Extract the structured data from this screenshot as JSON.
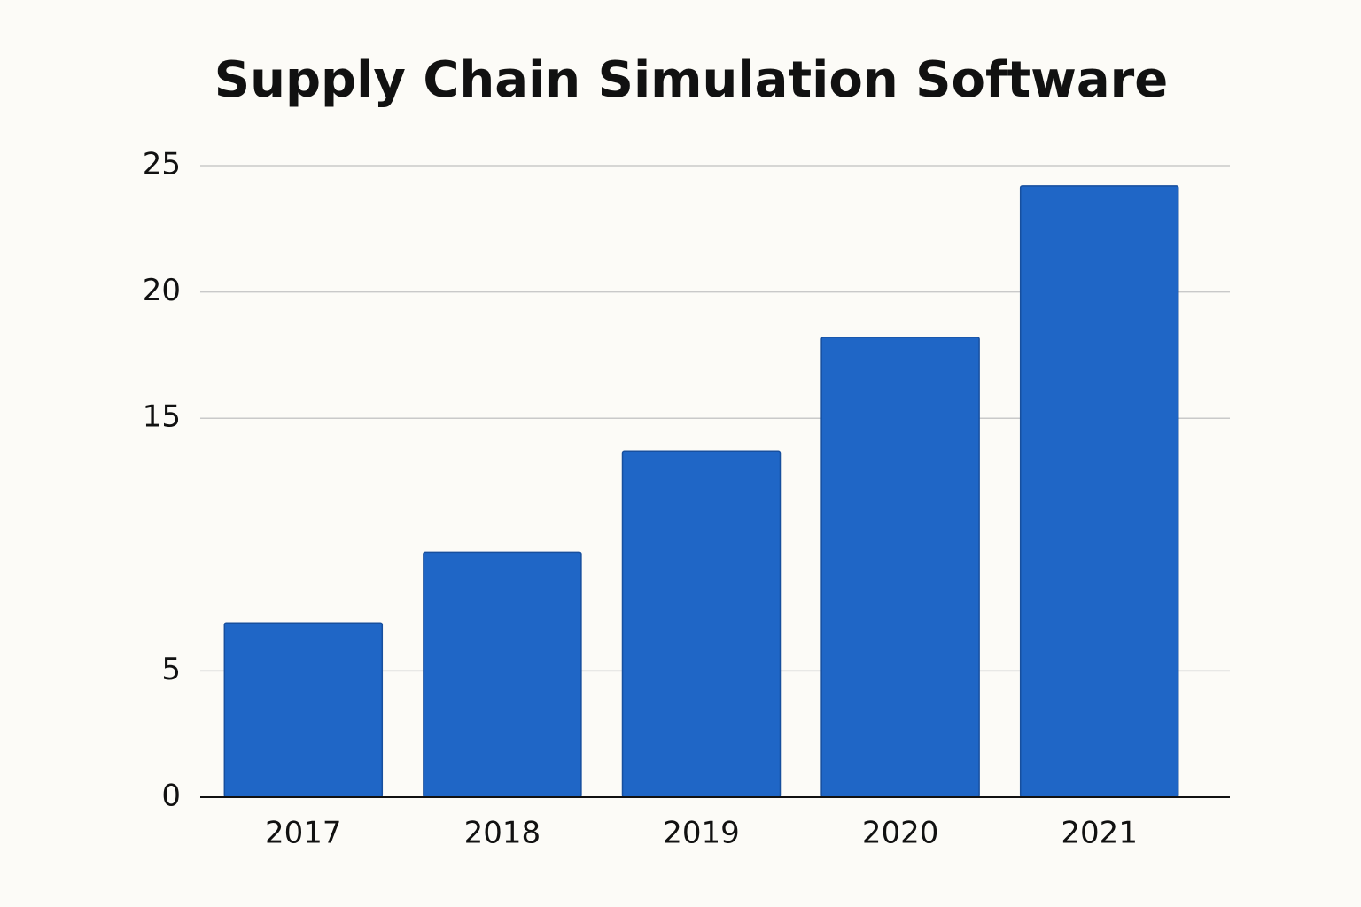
{
  "chart_data": {
    "type": "bar",
    "title": "Supply Chain Simulation Software",
    "categories": [
      "2017",
      "2018",
      "2019",
      "2020",
      "2021"
    ],
    "values": [
      6.9,
      9.7,
      13.7,
      18.2,
      24.2
    ],
    "color": "#1f66c6",
    "ylim": [
      0,
      25
    ],
    "yticks": [
      0,
      5,
      15,
      20,
      25
    ],
    "grid": true
  }
}
